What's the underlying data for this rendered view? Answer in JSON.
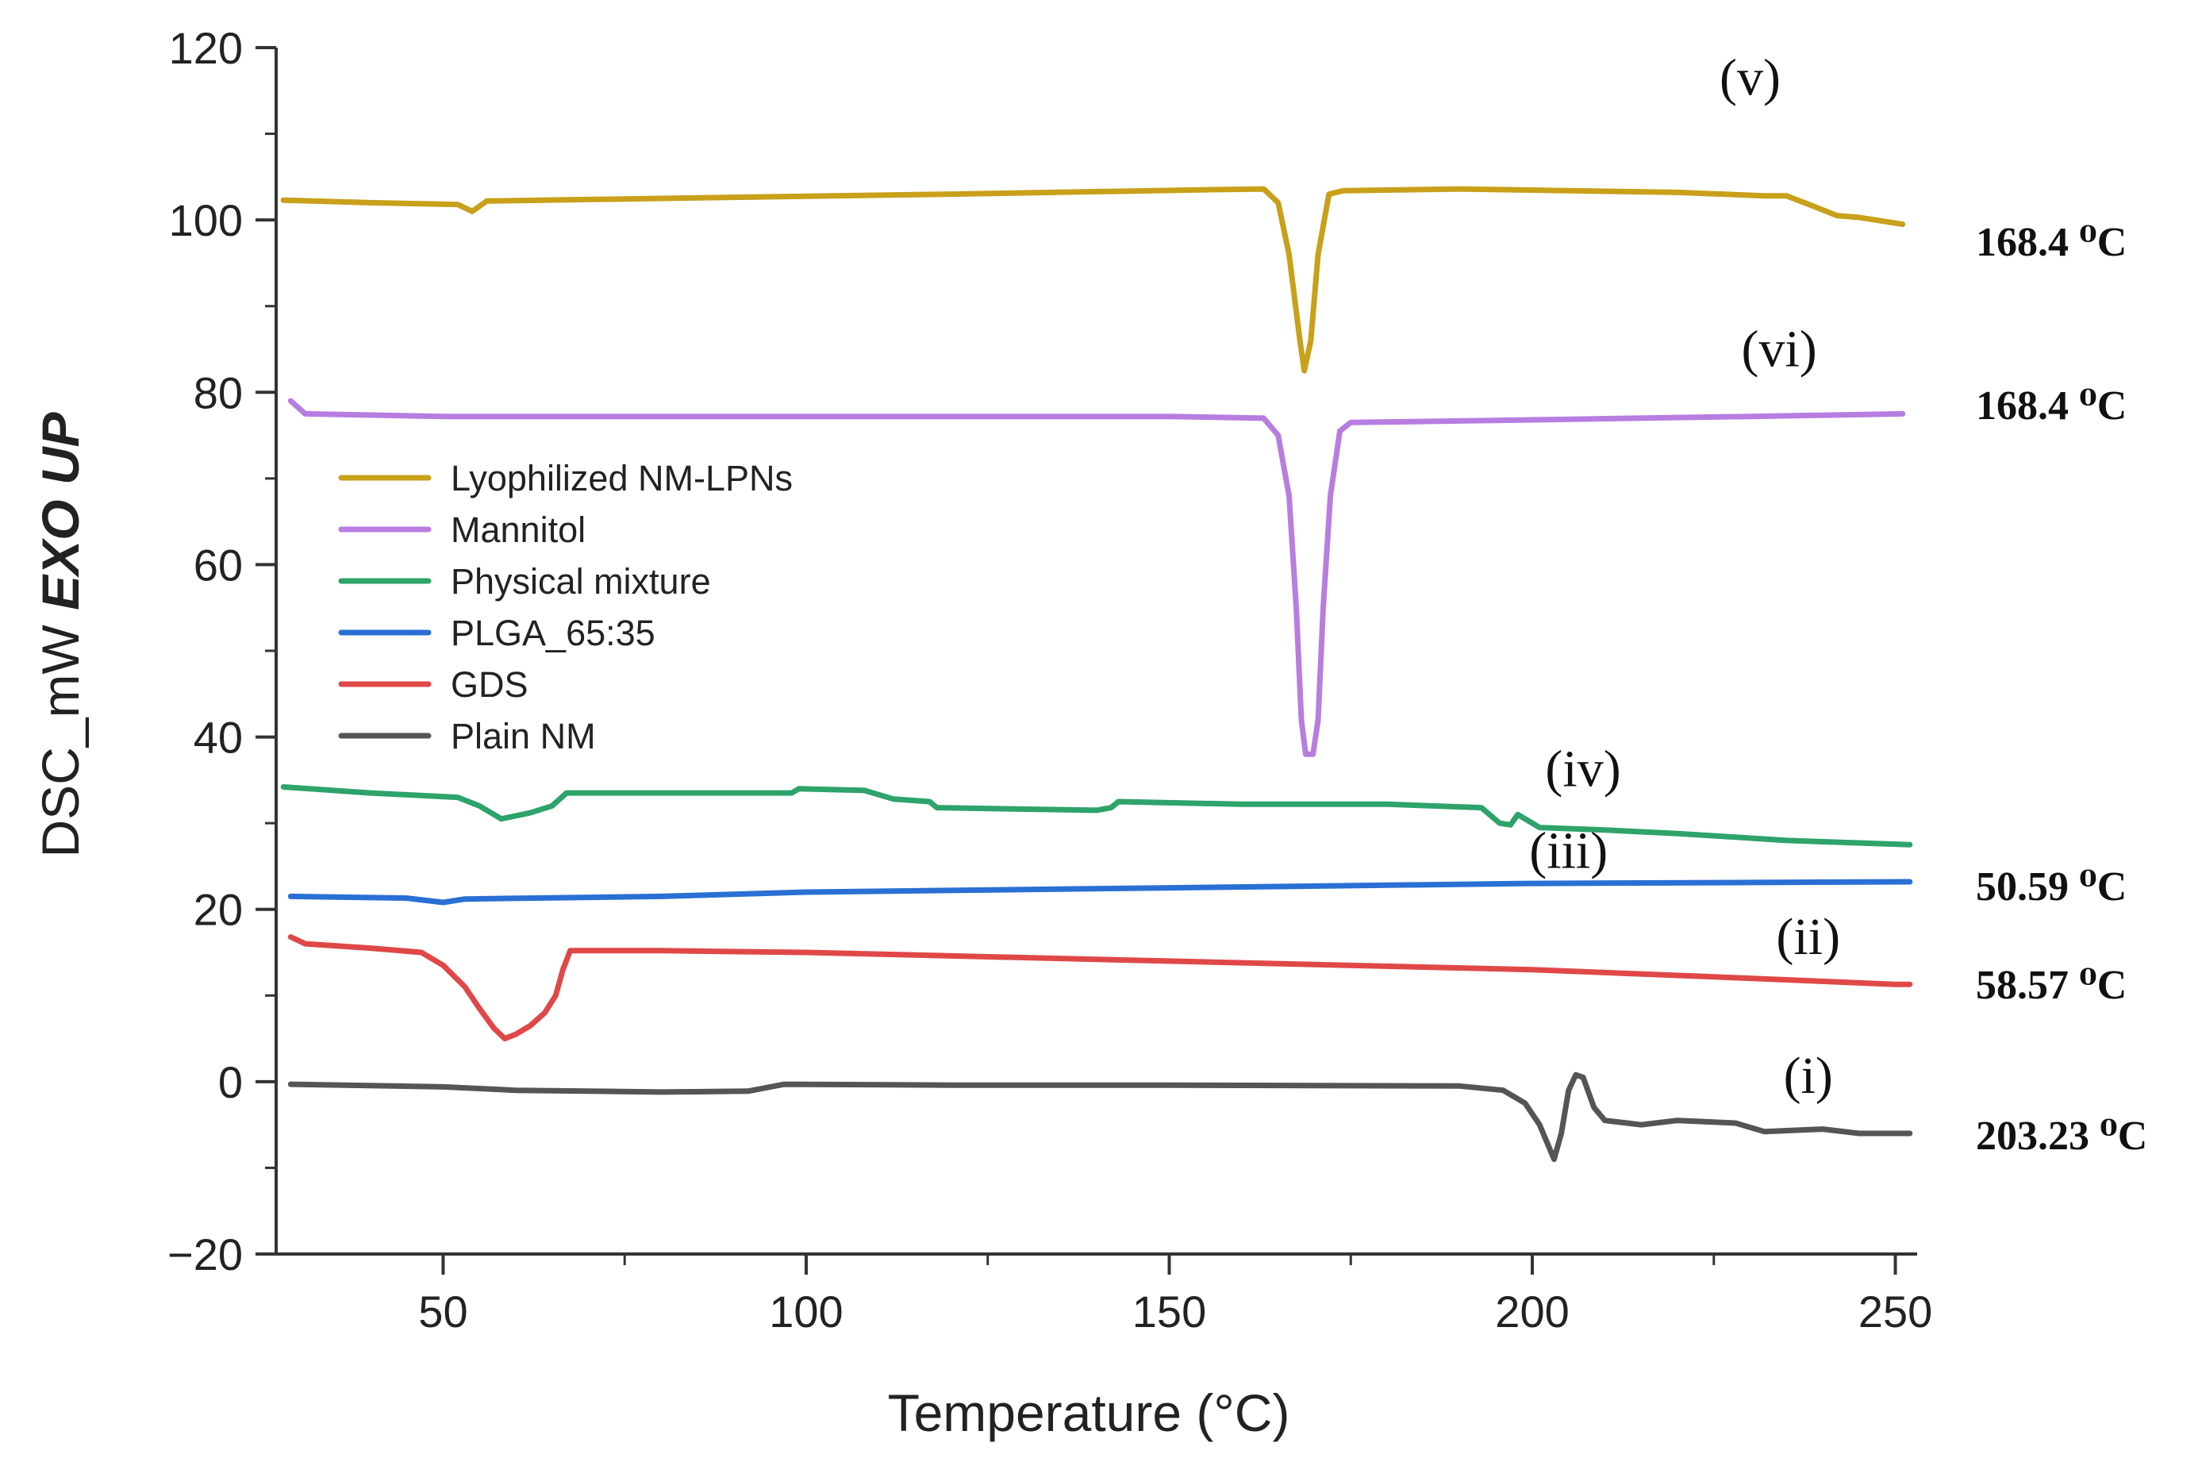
{
  "chart_data": {
    "type": "line",
    "title": "",
    "xlabel": "Temperature (°C)",
    "ylabel_prefix": "DSC_mW ",
    "ylabel_emphasis": "EXO UP",
    "xlim": [
      27,
      253
    ],
    "ylim": [
      -20,
      120
    ],
    "x_ticks": [
      {
        "value": 50,
        "label": "50"
      },
      {
        "value": 100,
        "label": "100"
      },
      {
        "value": 150,
        "label": "150"
      },
      {
        "value": 200,
        "label": "200"
      },
      {
        "value": 250,
        "label": "250"
      }
    ],
    "y_ticks": [
      {
        "value": -20,
        "label": "−20"
      },
      {
        "value": 0,
        "label": "0"
      },
      {
        "value": 20,
        "label": "20"
      },
      {
        "value": 40,
        "label": "40"
      },
      {
        "value": 60,
        "label": "60"
      },
      {
        "value": 80,
        "label": "80"
      },
      {
        "value": 100,
        "label": "100"
      },
      {
        "value": 120,
        "label": "120"
      }
    ],
    "series": [
      {
        "name": "Lyophilized NM-LPNs",
        "key": "lyophilized",
        "color": "#C8A01A",
        "points": [
          [
            28,
            102.3
          ],
          [
            40,
            102
          ],
          [
            52,
            101.8
          ],
          [
            54,
            101
          ],
          [
            56,
            102.2
          ],
          [
            80,
            102.5
          ],
          [
            120,
            103
          ],
          [
            155,
            103.5
          ],
          [
            163,
            103.6
          ],
          [
            165,
            102
          ],
          [
            166.5,
            96
          ],
          [
            168,
            86
          ],
          [
            168.6,
            82.5
          ],
          [
            169.5,
            86
          ],
          [
            170.5,
            96
          ],
          [
            172,
            103
          ],
          [
            174,
            103.4
          ],
          [
            190,
            103.6
          ],
          [
            220,
            103.2
          ],
          [
            232,
            102.8
          ],
          [
            235,
            102.8
          ],
          [
            239,
            101.5
          ],
          [
            242,
            100.5
          ],
          [
            245,
            100.3
          ],
          [
            251,
            99.5
          ]
        ]
      },
      {
        "name": "Mannitol",
        "key": "mannitol",
        "color": "#B77DE0",
        "points": [
          [
            29,
            79
          ],
          [
            31,
            77.5
          ],
          [
            50,
            77.2
          ],
          [
            100,
            77.2
          ],
          [
            150,
            77.2
          ],
          [
            163,
            77
          ],
          [
            165,
            75
          ],
          [
            166.5,
            68
          ],
          [
            167.5,
            55
          ],
          [
            168.2,
            42
          ],
          [
            168.8,
            38
          ],
          [
            169.8,
            38
          ],
          [
            170.5,
            42
          ],
          [
            171.2,
            55
          ],
          [
            172.2,
            68
          ],
          [
            173.5,
            75.5
          ],
          [
            175,
            76.5
          ],
          [
            200,
            76.8
          ],
          [
            230,
            77.2
          ],
          [
            251,
            77.5
          ]
        ]
      },
      {
        "name": "Physical mixture",
        "key": "physical",
        "color": "#2EA36A",
        "points": [
          [
            28,
            34.2
          ],
          [
            40,
            33.5
          ],
          [
            52,
            33
          ],
          [
            55,
            32
          ],
          [
            58,
            30.5
          ],
          [
            62,
            31.2
          ],
          [
            65,
            32
          ],
          [
            67,
            33.5
          ],
          [
            80,
            33.5
          ],
          [
            98,
            33.5
          ],
          [
            99,
            34
          ],
          [
            108,
            33.8
          ],
          [
            112,
            32.8
          ],
          [
            117,
            32.5
          ],
          [
            118,
            31.8
          ],
          [
            140,
            31.5
          ],
          [
            142,
            31.8
          ],
          [
            143,
            32.5
          ],
          [
            160,
            32.2
          ],
          [
            180,
            32.2
          ],
          [
            193,
            31.8
          ],
          [
            195.5,
            30
          ],
          [
            197,
            29.8
          ],
          [
            198,
            31
          ],
          [
            199,
            30.5
          ],
          [
            201,
            29.5
          ],
          [
            210,
            29.2
          ],
          [
            220,
            28.8
          ],
          [
            235,
            28
          ],
          [
            252,
            27.5
          ]
        ]
      },
      {
        "name": "PLGA_65:35",
        "key": "plga",
        "color": "#2A6FD4",
        "points": [
          [
            29,
            21.5
          ],
          [
            45,
            21.3
          ],
          [
            50,
            20.8
          ],
          [
            53,
            21.2
          ],
          [
            80,
            21.5
          ],
          [
            100,
            22
          ],
          [
            150,
            22.5
          ],
          [
            200,
            23
          ],
          [
            252,
            23.2
          ]
        ]
      },
      {
        "name": "GDS",
        "key": "gds",
        "color": "#E04848",
        "points": [
          [
            29,
            16.8
          ],
          [
            31,
            16
          ],
          [
            40,
            15.5
          ],
          [
            47,
            15
          ],
          [
            50,
            13.5
          ],
          [
            53,
            11
          ],
          [
            55,
            8.5
          ],
          [
            57,
            6.2
          ],
          [
            58.5,
            5
          ],
          [
            60,
            5.5
          ],
          [
            62,
            6.5
          ],
          [
            64,
            8
          ],
          [
            65.5,
            10
          ],
          [
            66.5,
            13
          ],
          [
            67.5,
            15.2
          ],
          [
            80,
            15.2
          ],
          [
            100,
            15
          ],
          [
            150,
            14
          ],
          [
            200,
            13
          ],
          [
            230,
            12
          ],
          [
            250,
            11.3
          ],
          [
            252,
            11.3
          ]
        ]
      },
      {
        "name": "Plain NM",
        "key": "plain",
        "color": "#555555",
        "points": [
          [
            29,
            -0.3
          ],
          [
            50,
            -0.6
          ],
          [
            60,
            -1
          ],
          [
            80,
            -1.2
          ],
          [
            92,
            -1.1
          ],
          [
            97,
            -0.3
          ],
          [
            120,
            -0.4
          ],
          [
            150,
            -0.4
          ],
          [
            190,
            -0.5
          ],
          [
            196,
            -1
          ],
          [
            199,
            -2.5
          ],
          [
            201,
            -5
          ],
          [
            203,
            -9
          ],
          [
            204,
            -6
          ],
          [
            205,
            -1
          ],
          [
            206,
            0.8
          ],
          [
            207,
            0.5
          ],
          [
            208.5,
            -3
          ],
          [
            210,
            -4.5
          ],
          [
            215,
            -5
          ],
          [
            220,
            -4.5
          ],
          [
            228,
            -4.8
          ],
          [
            232,
            -5.8
          ],
          [
            240,
            -5.5
          ],
          [
            245,
            -6
          ],
          [
            252,
            -6
          ]
        ]
      }
    ],
    "legend": {
      "placement": "upper-left inside plot"
    },
    "curve_labels": [
      {
        "text": "(v)",
        "x": 230,
        "y": 114.5
      },
      {
        "text": "(vi)",
        "x": 234,
        "y": 83
      },
      {
        "text": "(iv)",
        "x": 207,
        "y": 34.3
      },
      {
        "text": "(iii)",
        "x": 205,
        "y": 24.8
      },
      {
        "text": "(ii)",
        "x": 238,
        "y": 14.8
      },
      {
        "text": "(i)",
        "x": 238,
        "y": -1.3
      }
    ],
    "temperature_annotations": [
      {
        "text": "168.4 ⁰C",
        "for": "(v)"
      },
      {
        "text": "168.4 ⁰C",
        "for": "(vi)"
      },
      {
        "text": "50.59 ⁰C",
        "for": "(iii)"
      },
      {
        "text": "58.57 ⁰C",
        "for": "(ii)"
      },
      {
        "text": "203.23 ⁰C",
        "for": "(i)"
      }
    ],
    "grid": false
  }
}
